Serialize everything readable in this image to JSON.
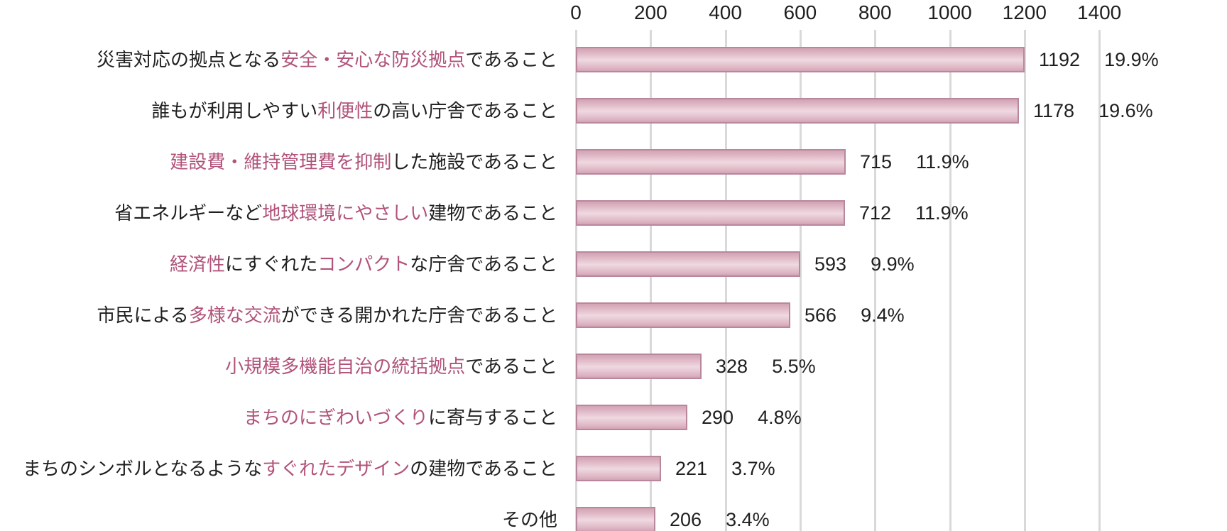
{
  "colors": {
    "background": "#ffffff",
    "text": "#1f1f1f",
    "accent_text": "#b1537a",
    "bar_border": "#b8879c",
    "bar_fill_dark": "#d2a3b4",
    "bar_fill_mid": "#ddb4c2",
    "bar_fill_light": "#efd9e0",
    "gridline": "#d9d9d9"
  },
  "chart_data": {
    "type": "bar",
    "orientation": "horizontal",
    "title": "",
    "xlabel": "",
    "ylabel": "",
    "xlim": [
      0,
      1400
    ],
    "x_ticks": [
      "0",
      "200",
      "400",
      "600",
      "800",
      "1000",
      "1200",
      "1400"
    ],
    "x_tick_values": [
      0,
      200,
      400,
      600,
      800,
      1000,
      1200,
      1400
    ],
    "grid": true,
    "axis_position": "top",
    "legend": false,
    "rows": [
      {
        "label_segments": [
          {
            "text": "災害対応の拠点となる",
            "em": false
          },
          {
            "text": "安全・安心な防災拠点",
            "em": true
          },
          {
            "text": "であること",
            "em": false
          }
        ],
        "value": 1192,
        "percent": "19.9%"
      },
      {
        "label_segments": [
          {
            "text": "誰もが利用しやすい",
            "em": false
          },
          {
            "text": "利便性",
            "em": true
          },
          {
            "text": "の高い庁舎であること",
            "em": false
          }
        ],
        "value": 1178,
        "percent": "19.6%"
      },
      {
        "label_segments": [
          {
            "text": "建設費・維持管理費を抑制",
            "em": true
          },
          {
            "text": "した施設であること",
            "em": false
          }
        ],
        "value": 715,
        "percent": "11.9%"
      },
      {
        "label_segments": [
          {
            "text": "省エネルギーなど",
            "em": false
          },
          {
            "text": "地球環境にやさしい",
            "em": true
          },
          {
            "text": "建物であること",
            "em": false
          }
        ],
        "value": 712,
        "percent": "11.9%"
      },
      {
        "label_segments": [
          {
            "text": "経済性",
            "em": true
          },
          {
            "text": "にすぐれた",
            "em": false
          },
          {
            "text": "コンパクト",
            "em": true
          },
          {
            "text": "な庁舎であること",
            "em": false
          }
        ],
        "value": 593,
        "percent": "9.9%"
      },
      {
        "label_segments": [
          {
            "text": "市民による",
            "em": false
          },
          {
            "text": "多様な交流",
            "em": true
          },
          {
            "text": "ができる開かれた庁舎であること",
            "em": false
          }
        ],
        "value": 566,
        "percent": "9.4%"
      },
      {
        "label_segments": [
          {
            "text": "小規模多機能自治の統括拠点",
            "em": true
          },
          {
            "text": "であること",
            "em": false
          }
        ],
        "value": 328,
        "percent": "5.5%"
      },
      {
        "label_segments": [
          {
            "text": "まちのにぎわいづくり",
            "em": true
          },
          {
            "text": "に寄与すること",
            "em": false
          }
        ],
        "value": 290,
        "percent": "4.8%"
      },
      {
        "label_segments": [
          {
            "text": "まちのシンボルとなるような",
            "em": false
          },
          {
            "text": "すぐれたデザイン",
            "em": true
          },
          {
            "text": "の建物であること",
            "em": false
          }
        ],
        "value": 221,
        "percent": "3.7%"
      },
      {
        "label_segments": [
          {
            "text": "その他",
            "em": false
          }
        ],
        "value": 206,
        "percent": "3.4%"
      }
    ]
  }
}
